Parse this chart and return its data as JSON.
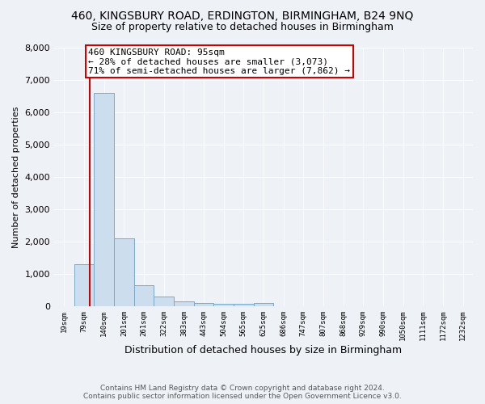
{
  "title1": "460, KINGSBURY ROAD, ERDINGTON, BIRMINGHAM, B24 9NQ",
  "title2": "Size of property relative to detached houses in Birmingham",
  "xlabel": "Distribution of detached houses by size in Birmingham",
  "ylabel": "Number of detached properties",
  "footnote1": "Contains HM Land Registry data © Crown copyright and database right 2024.",
  "footnote2": "Contains public sector information licensed under the Open Government Licence v3.0.",
  "bin_labels": [
    "19sqm",
    "79sqm",
    "140sqm",
    "201sqm",
    "261sqm",
    "322sqm",
    "383sqm",
    "443sqm",
    "504sqm",
    "565sqm",
    "625sqm",
    "686sqm",
    "747sqm",
    "807sqm",
    "868sqm",
    "929sqm",
    "990sqm",
    "1050sqm",
    "1111sqm",
    "1172sqm",
    "1232sqm"
  ],
  "bar_values": [
    0,
    1300,
    6600,
    2100,
    650,
    300,
    150,
    100,
    80,
    80,
    100,
    0,
    0,
    0,
    0,
    0,
    0,
    0,
    0,
    0,
    0
  ],
  "bar_color": "#ccdded",
  "bar_edge_color": "#7aaac8",
  "property_label": "460 KINGSBURY ROAD: 95sqm",
  "annotation_line1": "← 28% of detached houses are smaller (3,073)",
  "annotation_line2": "71% of semi-detached houses are larger (7,862) →",
  "vline_color": "#cc0000",
  "annotation_box_color": "#cc0000",
  "ylim": [
    0,
    8000
  ],
  "yticks": [
    0,
    1000,
    2000,
    3000,
    4000,
    5000,
    6000,
    7000,
    8000
  ],
  "background_color": "#eef2f7",
  "grid_color": "#ffffff",
  "title_fontsize": 10,
  "subtitle_fontsize": 9
}
